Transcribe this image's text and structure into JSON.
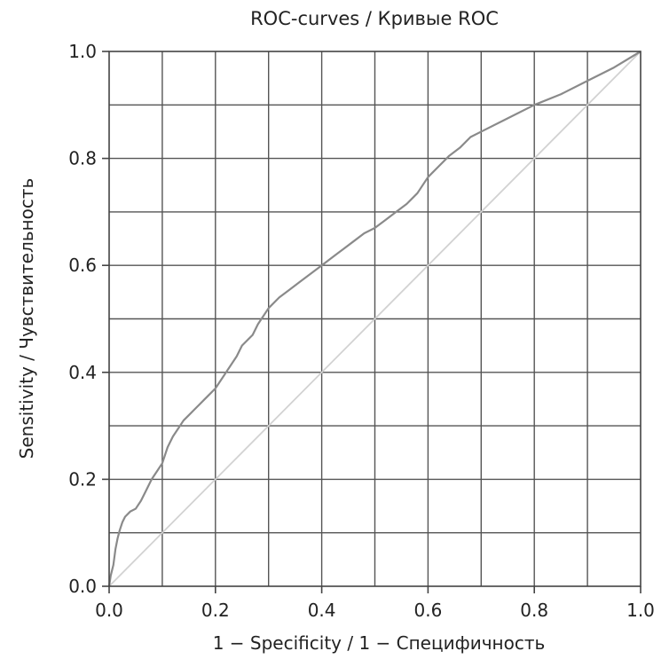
{
  "chart_data": {
    "type": "line",
    "title": "ROC-curves / Кривые ROC",
    "xlabel": "1 − Specificity / 1 − Специфичность",
    "ylabel": "Sensitivity / Чувствительность",
    "xlim": [
      0.0,
      1.0
    ],
    "ylim": [
      0.0,
      1.0
    ],
    "x_ticks": [
      "0.0",
      "0.2",
      "0.4",
      "0.6",
      "0.8",
      "1.0"
    ],
    "y_ticks": [
      "0.0",
      "0.2",
      "0.4",
      "0.6",
      "0.8",
      "1.0"
    ],
    "x_tick_values": [
      0.0,
      0.2,
      0.4,
      0.6,
      0.8,
      1.0
    ],
    "y_tick_values": [
      0.0,
      0.2,
      0.4,
      0.6,
      0.8,
      1.0
    ],
    "grid_values": [
      0.1,
      0.2,
      0.3,
      0.4,
      0.5,
      0.6,
      0.7,
      0.8,
      0.9
    ],
    "grid": true,
    "colors": {
      "curve": "#8a8a8a",
      "diagonal": "#d2d2d2",
      "grid": "#555555",
      "axis": "#444444",
      "text": "#222222"
    },
    "series": [
      {
        "x": [
          0.0,
          0.003,
          0.008,
          0.012,
          0.016,
          0.02,
          0.025,
          0.03,
          0.04,
          0.05,
          0.06,
          0.07,
          0.08,
          0.09,
          0.1,
          0.11,
          0.12,
          0.13,
          0.14,
          0.15,
          0.16,
          0.17,
          0.18,
          0.19,
          0.2,
          0.22,
          0.24,
          0.25,
          0.26,
          0.27,
          0.28,
          0.29,
          0.3,
          0.32,
          0.34,
          0.36,
          0.38,
          0.4,
          0.42,
          0.44,
          0.46,
          0.48,
          0.5,
          0.52,
          0.54,
          0.56,
          0.58,
          0.6,
          0.62,
          0.64,
          0.66,
          0.68,
          0.7,
          0.75,
          0.8,
          0.85,
          0.9,
          0.95,
          1.0
        ],
        "y": [
          0.0,
          0.02,
          0.04,
          0.07,
          0.09,
          0.105,
          0.12,
          0.13,
          0.14,
          0.145,
          0.16,
          0.18,
          0.2,
          0.215,
          0.23,
          0.26,
          0.28,
          0.295,
          0.31,
          0.32,
          0.33,
          0.34,
          0.35,
          0.36,
          0.37,
          0.4,
          0.43,
          0.45,
          0.46,
          0.47,
          0.49,
          0.505,
          0.52,
          0.54,
          0.555,
          0.57,
          0.585,
          0.6,
          0.615,
          0.63,
          0.645,
          0.66,
          0.67,
          0.685,
          0.7,
          0.715,
          0.735,
          0.765,
          0.785,
          0.805,
          0.82,
          0.84,
          0.85,
          0.875,
          0.9,
          0.92,
          0.945,
          0.97,
          1.0
        ]
      },
      {
        "x": [
          0.0,
          1.0
        ],
        "y": [
          0.0,
          1.0
        ]
      }
    ]
  }
}
